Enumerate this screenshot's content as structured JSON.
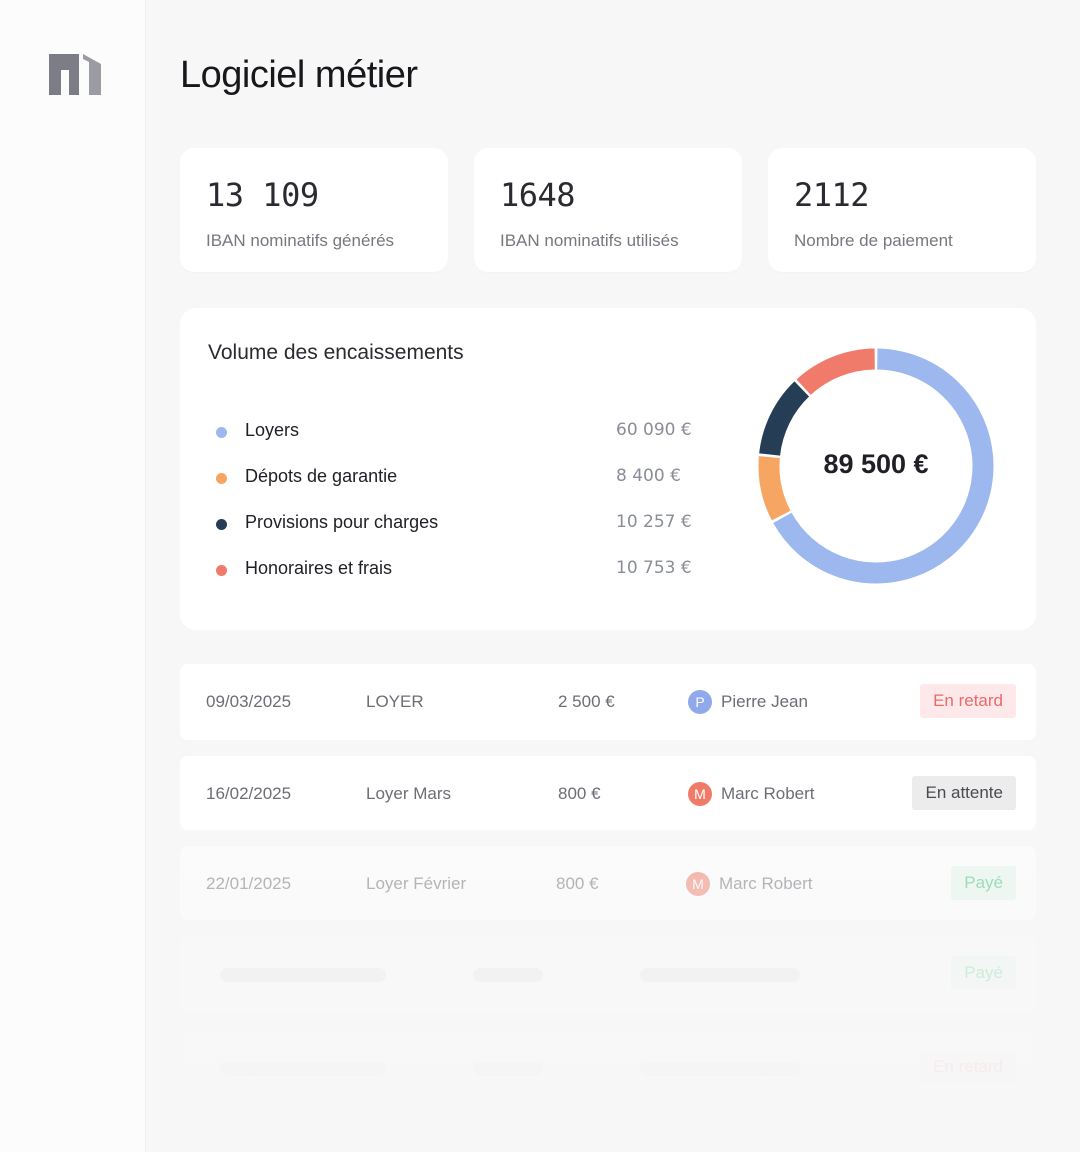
{
  "app": {
    "title": "Logiciel métier",
    "logo_icon": "building-logo-icon"
  },
  "kpis": [
    {
      "value": "13 109",
      "label": "IBAN nominatifs générés"
    },
    {
      "value": "1648",
      "label": "IBAN nominatifs utilisés"
    },
    {
      "value": "2112",
      "label": "Nombre de paiement"
    }
  ],
  "volume": {
    "title": "Volume des encaissements",
    "total": "89 500 €",
    "items": [
      {
        "label": "Loyers",
        "amount": "60 090 €",
        "color": "#9db8ee"
      },
      {
        "label": "Dépots de garantie",
        "amount": "8 400 €",
        "color": "#f7a563"
      },
      {
        "label": "Provisions pour charges",
        "amount": "10 257 €",
        "color": "#263d56"
      },
      {
        "label": "Honoraires et frais",
        "amount": "10 753 €",
        "color": "#f07b6b"
      }
    ]
  },
  "chart_data": {
    "type": "pie",
    "categories": [
      "Loyers",
      "Dépots de garantie",
      "Provisions pour charges",
      "Honoraires et frais"
    ],
    "values": [
      60090,
      8400,
      10257,
      10753
    ],
    "colors": [
      "#9db8ee",
      "#f7a563",
      "#263d56",
      "#f07b6b"
    ],
    "title": "Volume des encaissements",
    "center_label": "89 500 €"
  },
  "payments": [
    {
      "date": "09/03/2025",
      "label": "LOYER",
      "amount": "2 500 €",
      "initial": "P",
      "avatar_color": "#8fa9ea",
      "person": "Pierre Jean",
      "status": "En retard",
      "status_kind": "late"
    },
    {
      "date": "16/02/2025",
      "label": "Loyer Mars",
      "amount": "800 €",
      "initial": "M",
      "avatar_color": "#ee7b68",
      "person": "Marc Robert",
      "status": "En attente",
      "status_kind": "waiting"
    },
    {
      "date": "22/01/2025",
      "label": "Loyer Février",
      "amount": "800 €",
      "initial": "M",
      "avatar_color": "#ee7b68",
      "person": "Marc Robert",
      "status": "Payé",
      "status_kind": "paid"
    }
  ],
  "placeholder_rows": [
    {
      "status": "Payé",
      "status_kind": "paid"
    },
    {
      "status": "En retard",
      "status_kind": "late"
    }
  ]
}
